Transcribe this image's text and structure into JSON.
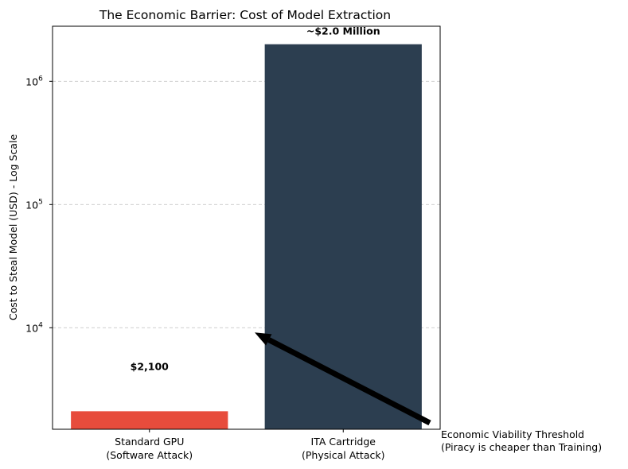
{
  "chart_data": {
    "type": "bar",
    "title": "The Economic Barrier: Cost of Model Extraction",
    "ylabel": "Cost to Steal Model (USD) - Log Scale",
    "xlabel": "",
    "yscale": "log",
    "ylim": [
      1500,
      2800000
    ],
    "grid": "y-major-dashed",
    "categories": [
      {
        "line1": "Standard GPU",
        "line2": "(Software Attack)"
      },
      {
        "line1": "ITA Cartridge",
        "line2": "(Physical Attack)"
      }
    ],
    "values": [
      2100,
      2000000
    ],
    "colors": [
      "#e74c3c",
      "#2c3e50"
    ],
    "data_labels": [
      "$2,100",
      "~$2.0 Million"
    ],
    "yticks": [
      {
        "base": "10",
        "exp": "4",
        "value": 10000
      },
      {
        "base": "10",
        "exp": "5",
        "value": 100000
      },
      {
        "base": "10",
        "exp": "6",
        "value": 1000000
      }
    ],
    "annotation": {
      "line1": "Economic Viability Threshold",
      "line2": "(Piracy is cheaper than Training)",
      "target_value": 10000,
      "arrow_color": "#000000"
    }
  }
}
